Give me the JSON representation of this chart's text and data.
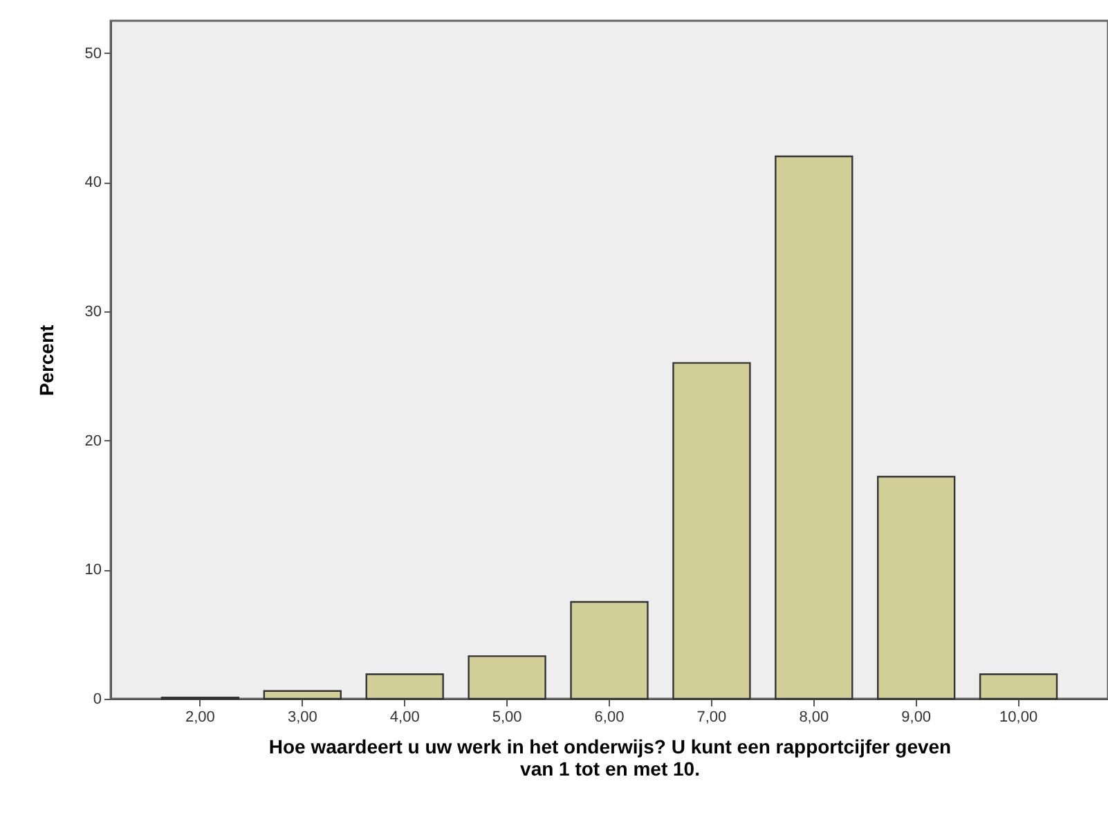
{
  "chart_data": {
    "type": "bar",
    "categories": [
      "2,00",
      "3,00",
      "4,00",
      "5,00",
      "6,00",
      "7,00",
      "8,00",
      "9,00",
      "10,00"
    ],
    "values": [
      0.1,
      0.6,
      1.9,
      3.3,
      7.5,
      26.0,
      42.0,
      17.2,
      1.9
    ],
    "color": "#d1ce98",
    "xlabel": "Hoe waardeert u uw werk in het onderwijs? U kunt een rapportcijfer geven\nvan 1 tot en met 10.",
    "ylabel": "Percent",
    "ylim": [
      0,
      52.5
    ],
    "yticks": [
      0,
      10,
      20,
      30,
      40,
      50
    ],
    "grid": false
  }
}
